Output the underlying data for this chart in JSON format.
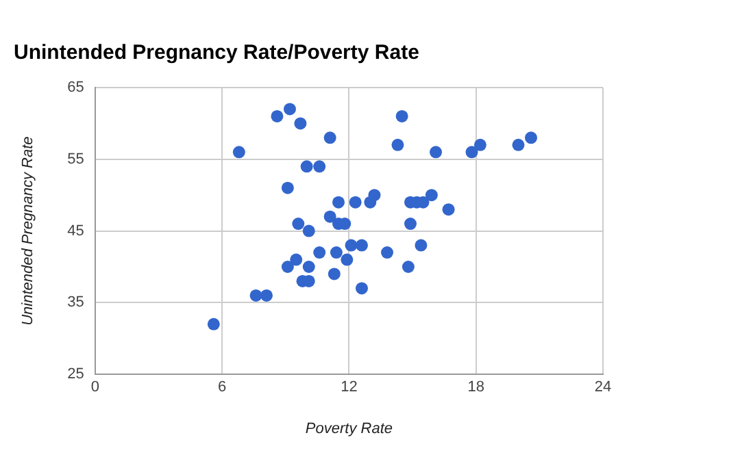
{
  "chart_data": {
    "type": "scatter",
    "title": "Unintended Pregnancy Rate/Poverty Rate",
    "xlabel": "Poverty Rate",
    "ylabel": "Unintended Pregnancy Rate",
    "series": [
      {
        "color": "#3366cc",
        "x": [
          8.6,
          9.2,
          9.7,
          11.1,
          6.8,
          10.0,
          10.6,
          9.1,
          11.1,
          11.5,
          11.8,
          9.6,
          10.1,
          10.6,
          11.4,
          9.5,
          9.1,
          10.1,
          11.9,
          9.8,
          10.1,
          11.3,
          7.6,
          8.1,
          5.6,
          14.5,
          14.3,
          16.1,
          17.8,
          18.2,
          20.0,
          20.6,
          11.5,
          12.1,
          12.3,
          13.0,
          13.2,
          14.9,
          15.2,
          15.5,
          15.9,
          16.7,
          14.9,
          12.1,
          12.6,
          13.8,
          15.4,
          14.8,
          12.6
        ],
        "values": [
          61,
          62,
          60,
          58,
          56,
          54,
          54,
          51,
          47,
          46,
          46,
          46,
          45,
          42,
          42,
          41,
          40,
          40,
          41,
          38,
          38,
          39,
          36,
          36,
          32,
          61,
          57,
          56,
          56,
          57,
          57,
          58,
          49,
          null,
          49,
          49,
          50,
          49,
          49,
          49,
          50,
          48,
          46,
          43,
          43,
          42,
          43,
          40,
          37
        ]
      }
    ],
    "xlim": [
      0,
      24
    ],
    "xticks": [
      0,
      6,
      12,
      18,
      24
    ],
    "ylim": [
      25,
      65
    ],
    "yticks": [
      25,
      35,
      45,
      55,
      65
    ],
    "grid": true,
    "legend": false,
    "marker": "circle"
  }
}
